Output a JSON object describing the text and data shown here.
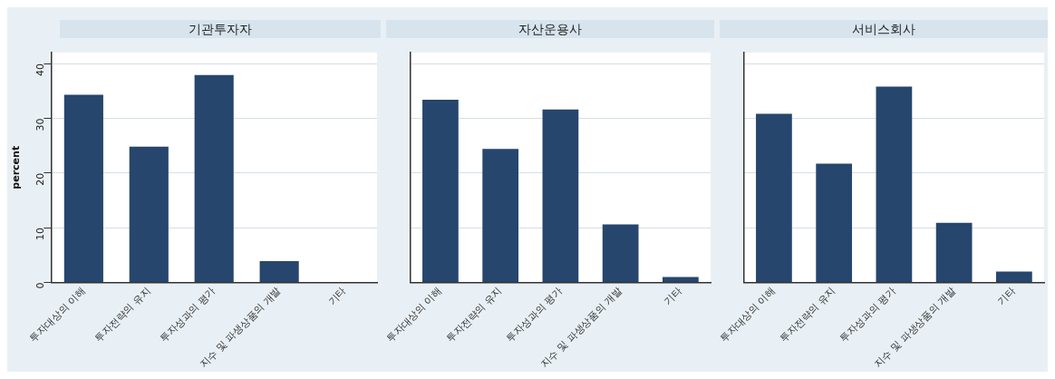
{
  "chart_data": [
    {
      "type": "bar",
      "title": "기관투자자",
      "ylabel": "percent",
      "categories": [
        "투자대상의 이해",
        "투자전략의 유지",
        "투자성과의 평가",
        "지수 및 파생상품의 개발",
        "기타"
      ],
      "values": [
        34.3,
        24.8,
        37.9,
        3.9,
        0
      ],
      "color": "#26466d",
      "ylim": [
        0,
        42
      ],
      "yticks": [
        0,
        10,
        20,
        30,
        40
      ],
      "grid": "y"
    },
    {
      "type": "bar",
      "title": "자산운용사",
      "categories": [
        "투자대상의 이해",
        "투자전략의 유지",
        "투자성과의 평가",
        "지수 및 파생상품의 개발",
        "기타"
      ],
      "values": [
        33.4,
        24.4,
        31.6,
        10.6,
        1.0
      ],
      "color": "#26466d",
      "ylim": [
        0,
        42
      ],
      "yticks": [
        0,
        10,
        20,
        30,
        40
      ],
      "grid": "y",
      "tick_labels": "x"
    },
    {
      "type": "bar",
      "title": "서비스회사",
      "categories": [
        "투자대상의 이해",
        "투자전략의 유지",
        "투자성과의 평가",
        "지수 및 파생상품의 개발",
        "기타"
      ],
      "values": [
        30.8,
        21.7,
        35.8,
        10.9,
        2.0
      ],
      "color": "#26466d",
      "ylim": [
        0,
        42
      ],
      "yticks": [
        0,
        10,
        20,
        30,
        40
      ],
      "grid": "y",
      "tick_labels": "x"
    }
  ]
}
